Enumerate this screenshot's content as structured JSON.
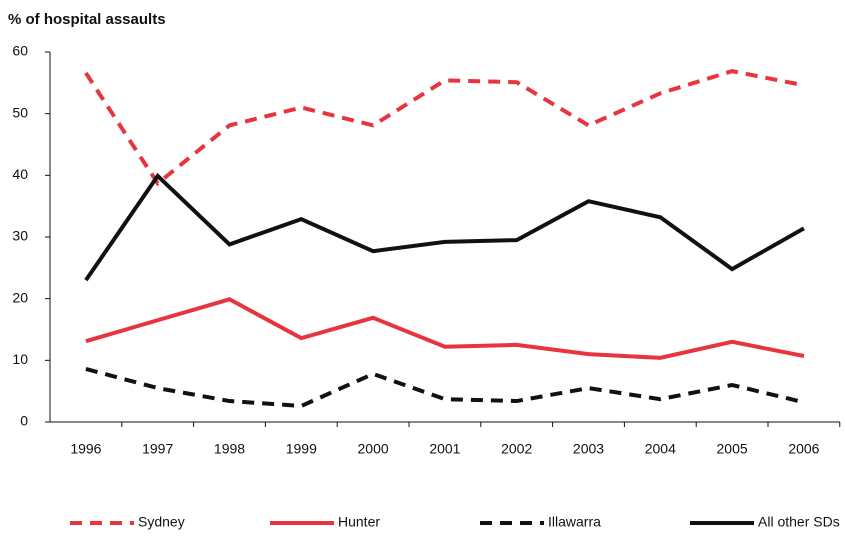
{
  "chart_data": {
    "type": "line",
    "title": "% of hospital assaults",
    "categories": [
      "1996",
      "1997",
      "1998",
      "1999",
      "2000",
      "2001",
      "2002",
      "2003",
      "2004",
      "2005",
      "2006"
    ],
    "ylim": [
      0,
      60
    ],
    "yticks": [
      0,
      10,
      20,
      30,
      40,
      50,
      60
    ],
    "series": [
      {
        "name": "Sydney",
        "color": "#e8343c",
        "dashed": true,
        "values": [
          56.6,
          38.7,
          48.1,
          51,
          48.1,
          55.4,
          55.1,
          48.1,
          53.3,
          56.9,
          54.6
        ]
      },
      {
        "name": "Hunter",
        "color": "#e8343c",
        "dashed": false,
        "values": [
          13.1,
          16.5,
          19.9,
          13.6,
          16.9,
          12.2,
          12.5,
          11,
          10.4,
          13,
          10.7
        ]
      },
      {
        "name": "Illawarra",
        "color": "#111111",
        "dashed": true,
        "values": [
          8.6,
          5.5,
          3.4,
          2.6,
          7.8,
          3.7,
          3.4,
          5.5,
          3.7,
          6,
          3.2
        ]
      },
      {
        "name": "All other SDs",
        "color": "#111111",
        "dashed": false,
        "values": [
          23,
          39.9,
          28.8,
          32.9,
          27.7,
          29.2,
          29.5,
          35.8,
          33.2,
          24.8,
          31.4
        ]
      }
    ]
  }
}
